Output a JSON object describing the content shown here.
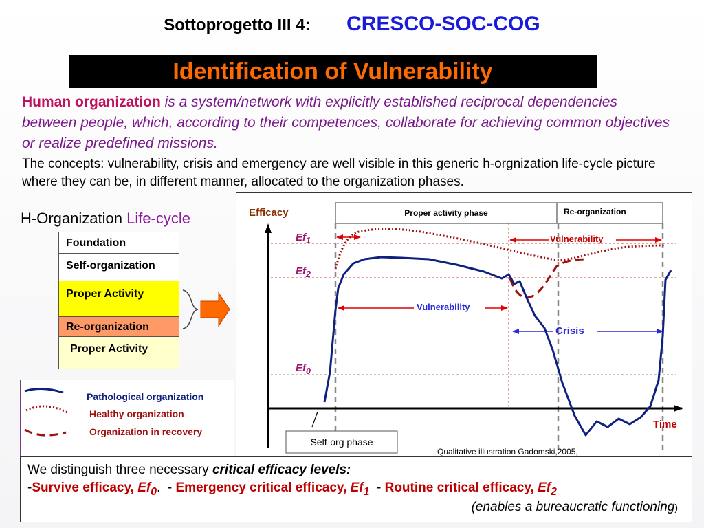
{
  "header": {
    "subproject": "Sottoprogetto III 4",
    "colon": ":",
    "project": "CRESCO-SOC-COG"
  },
  "title": "Identification of Vulnerability",
  "intro": {
    "lead_bold": "Human organization",
    "lead_rest": " is a system/network with explicitly established reciprocal dependencies between people, which, according to their competences, collaborate for achieving common objectives or realize predefined missions.",
    "plain": "The concepts: vulnerability, crisis and emergency are well visible in this generic h-orgnization life-cycle picture where they can be, in different manner, allocated to the organization phases."
  },
  "lifecycle": {
    "heading_plain": "H-Organization ",
    "heading_colored": "Life-cycle",
    "phases": [
      {
        "label": "Foundation",
        "color": "#ffffff"
      },
      {
        "label": "Self-organization",
        "color": "#ffffff"
      },
      {
        "label": "Proper Activity",
        "color": "#ffff00"
      },
      {
        "label": "Re-organization",
        "color": "#ff9966"
      },
      {
        "label": "Proper Activity",
        "color": "#ffffcc"
      }
    ]
  },
  "legend": {
    "pathological": "Pathological organization",
    "healthy": "Healthy organization",
    "recovery": "Organization in recovery"
  },
  "diagram": {
    "y_axis_label": "Efficacy",
    "x_axis_label": "Time",
    "phase_proper": "Proper activity phase",
    "phase_reorg": "Re-organization",
    "ef1": "Ef",
    "ef1_sub": "1",
    "ef2": "Ef",
    "ef2_sub": "2",
    "ef0": "Ef",
    "ef0_sub": "0",
    "vulnerability_top": "Vulnerability",
    "vulnerability_mid": "Vulnerability",
    "crisis": "Crisis",
    "self_org_phase": "Self-org phase",
    "credit": "Qualitative illustration Gadomski,2005,"
  },
  "bottom": {
    "line1_plain": "We distinguish three necessary ",
    "line1_bold": "critical efficacy levels:",
    "dash1": "-",
    "survive": "Survive efficacy, ",
    "ef0": "Ef",
    "ef0_sub": "0",
    "dot": ".",
    "dash2": "  - ",
    "emergency": "Emergency  critical efficacy, ",
    "ef1": "Ef",
    "ef1_sub": "1",
    "dash3": "  - ",
    "routine": "Routine critical efficacy, ",
    "ef2": "Ef",
    "ef2_sub": "2",
    "line3_open": "(enables a  bureaucratic functioning",
    "line3_close": ")"
  }
}
